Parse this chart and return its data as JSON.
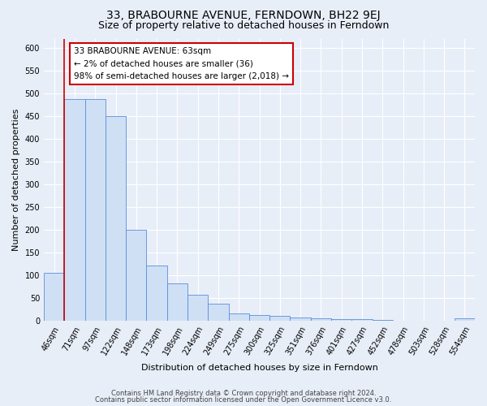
{
  "title": "33, BRABOURNE AVENUE, FERNDOWN, BH22 9EJ",
  "subtitle": "Size of property relative to detached houses in Ferndown",
  "xlabel": "Distribution of detached houses by size in Ferndown",
  "ylabel": "Number of detached properties",
  "bar_labels": [
    "46sqm",
    "71sqm",
    "97sqm",
    "122sqm",
    "148sqm",
    "173sqm",
    "198sqm",
    "224sqm",
    "249sqm",
    "275sqm",
    "300sqm",
    "325sqm",
    "351sqm",
    "376sqm",
    "401sqm",
    "427sqm",
    "452sqm",
    "478sqm",
    "503sqm",
    "528sqm",
    "554sqm"
  ],
  "bar_values": [
    105,
    487,
    487,
    450,
    200,
    122,
    82,
    58,
    37,
    17,
    13,
    10,
    8,
    5,
    3,
    3,
    2,
    1,
    1,
    1,
    5
  ],
  "bar_color": "#cfe0f5",
  "bar_edge_color": "#5b8dd9",
  "highlight_color": "#cc0000",
  "annotation_title": "33 BRABOURNE AVENUE: 63sqm",
  "annotation_line1": "← 2% of detached houses are smaller (36)",
  "annotation_line2": "98% of semi-detached houses are larger (2,018) →",
  "annotation_box_color": "#ffffff",
  "annotation_box_edge": "#cc0000",
  "ylim": [
    0,
    620
  ],
  "yticks": [
    0,
    50,
    100,
    150,
    200,
    250,
    300,
    350,
    400,
    450,
    500,
    550,
    600
  ],
  "footer1": "Contains HM Land Registry data © Crown copyright and database right 2024.",
  "footer2": "Contains public sector information licensed under the Open Government Licence v3.0.",
  "bg_color": "#e8eef8",
  "plot_bg_color": "#e8eef8",
  "grid_color": "#ffffff",
  "title_fontsize": 10,
  "subtitle_fontsize": 9,
  "ylabel_fontsize": 8,
  "xlabel_fontsize": 8,
  "tick_fontsize": 7,
  "annot_fontsize": 7.5,
  "footer_fontsize": 6
}
